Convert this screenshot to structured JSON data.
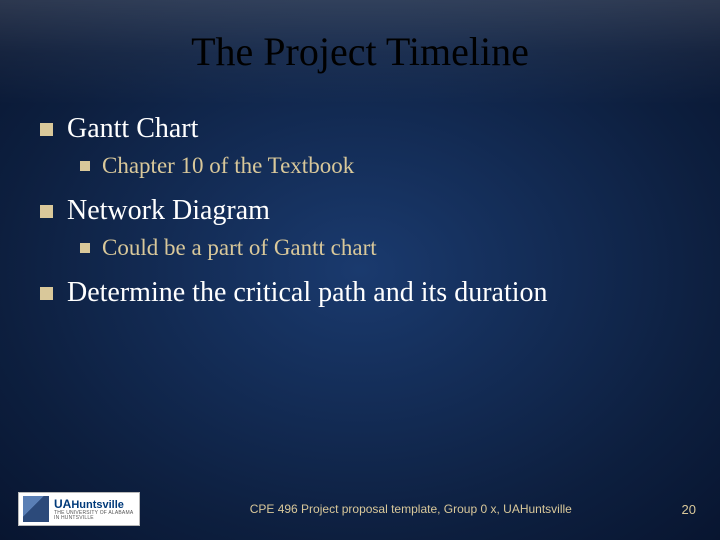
{
  "title": "The Project Timeline",
  "items": [
    {
      "text": "Gantt Chart",
      "children": [
        {
          "text": "Chapter 10 of the Textbook"
        }
      ]
    },
    {
      "text": "Network Diagram",
      "children": [
        {
          "text": "Could be a part of Gantt chart"
        }
      ]
    },
    {
      "text": "Determine the critical path and its duration",
      "children": []
    }
  ],
  "footer": {
    "logo_prefix": "UA",
    "logo_main": "Huntsville",
    "logo_sub": "THE UNIVERSITY OF ALABAMA IN HUNTSVILLE",
    "text": "CPE 496 Project proposal template, Group 0 x, UAHuntsville",
    "page": "20"
  },
  "colors": {
    "accent": "#d9c89a",
    "title_color": "#000000",
    "text_color": "#ffffff"
  }
}
